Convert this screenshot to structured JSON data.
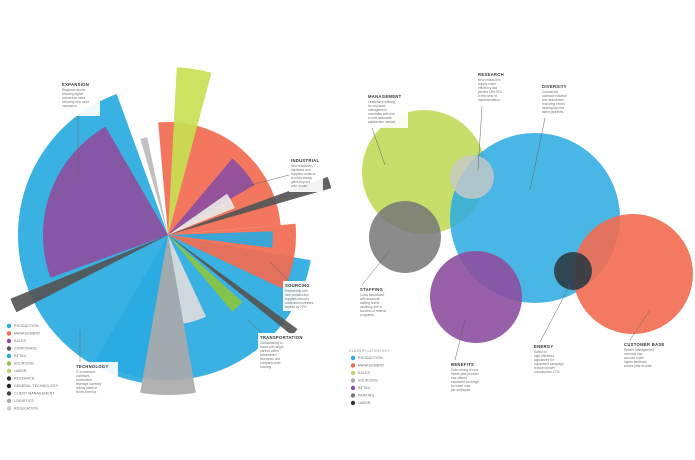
{
  "chart_data": [
    {
      "type": "radial-bar",
      "legend": {
        "placement": "bottom-left",
        "items": [
          {
            "label": "PRODUCTION",
            "color": "#29aae1"
          },
          {
            "label": "MANAGEMENT",
            "color": "#f26b50"
          },
          {
            "label": "SALES",
            "color": "#8d4f9f"
          },
          {
            "label": "CORPORATE",
            "color": "#555555"
          },
          {
            "label": "RETAIL",
            "color": "#29aae1"
          },
          {
            "label": "SOURCING",
            "color": "#8cc63f"
          },
          {
            "label": "LABOR",
            "color": "#b7d66b"
          },
          {
            "label": "RESEARCH",
            "color": "#333333"
          },
          {
            "label": "GENERAL TECHNOLOGY",
            "color": "#222222"
          },
          {
            "label": "CLIENT MANAGEMENT",
            "color": "#444444"
          },
          {
            "label": "LOGISTICS",
            "color": "#aaaaaa"
          },
          {
            "label": "REGULATION",
            "color": "#cccccc"
          }
        ]
      },
      "callouts": [
        {
          "title": "EXPANSION",
          "lines": [
            "Regional reports",
            "showing higher",
            "conversion rates",
            "following new store",
            "expansion."
          ]
        },
        {
          "title": "INDUSTRIAL",
          "lines": [
            "New machinery",
            "hardware and",
            "supplies continue",
            "to show steady",
            "gains beyond",
            "prior month."
          ]
        },
        {
          "title": "SOURCING",
          "lines": [
            "Partnership with",
            "new construction",
            "supplies reduces",
            "costs and increases",
            "access by 22%."
          ]
        },
        {
          "title": "TRANSPORTATION",
          "lines": [
            "Consolidating to",
            "travel with single",
            "partner offers",
            "streamlined",
            "itineraries and",
            "company-wide",
            "booking."
          ]
        },
        {
          "title": "TECHNOLOGY",
          "lines": [
            "IT investment",
            "continues",
            "momentum,",
            "leverage currently",
            "driving sales to",
            "North America."
          ]
        }
      ]
    },
    {
      "type": "bubble",
      "legend": {
        "placement": "bottom-center",
        "title": "CLASSIFICATION KEY",
        "items": [
          {
            "label": "PRODUCTION",
            "color": "#29aae1"
          },
          {
            "label": "MANAGEMENT",
            "color": "#f26b50"
          },
          {
            "label": "SALES",
            "color": "#b7d66b"
          },
          {
            "label": "SOURCING",
            "color": "#aaaaaa"
          },
          {
            "label": "RETAIL",
            "color": "#8d4f9f"
          },
          {
            "label": "PARKING",
            "color": "#777777"
          },
          {
            "label": "LABOR",
            "color": "#333333"
          }
        ]
      },
      "callouts": [
        {
          "title": "RESEARCH",
          "lines": [
            "New research in",
            "supply chain",
            "efficiency has",
            "yielded 18% ROI",
            "in first year of",
            "implementation."
          ]
        },
        {
          "title": "DIVERSITY",
          "lines": [
            "Community",
            "outreach initiative",
            "and associated",
            "recruiting efforts",
            "developing new",
            "talent pipelines."
          ]
        },
        {
          "title": "MANAGEMENT",
          "lines": [
            "Leadership training",
            "for mid-level",
            "management",
            "correlates with rise",
            "in new-associate",
            "satisfaction metrics."
          ]
        },
        {
          "title": "STAFFING",
          "lines": [
            "Costs associated",
            "with seasonal",
            "staffing levels",
            "declining due to",
            "success of referral",
            "programs."
          ]
        },
        {
          "title": "BENEFITS",
          "lines": [
            "Data mining of new",
            "health plan provider",
            "has offered",
            "expanded coverage",
            "for lower cost",
            "per employee."
          ]
        },
        {
          "title": "ENERGY",
          "lines": [
            "Switch to",
            "high-efficiency",
            "appliances for",
            "equipment campaign",
            "reduced power",
            "consumption 17%."
          ]
        },
        {
          "title": "CUSTOMER BASE",
          "lines": [
            "Recent management",
            "overhaul has",
            "account holds",
            "higher feedback",
            "scores year-to-date."
          ]
        }
      ]
    }
  ]
}
